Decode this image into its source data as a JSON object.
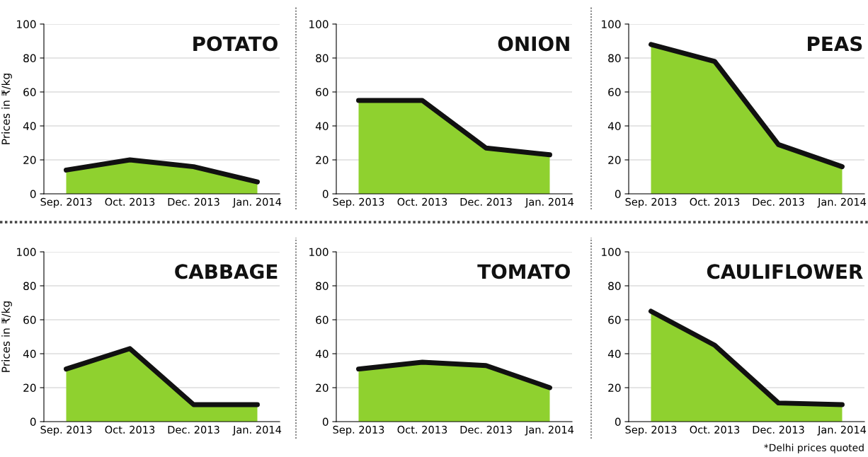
{
  "chart_data": [
    {
      "type": "area",
      "title": "POTATO",
      "ylabel": "Prices in ₹/kg",
      "categories": [
        "Sep. 2013",
        "Oct. 2013",
        "Dec. 2013",
        "Jan. 2014"
      ],
      "values": [
        14,
        20,
        16,
        7
      ],
      "color": "#8fd12f",
      "ylim": [
        0,
        100
      ],
      "yticks": [
        0,
        20,
        40,
        60,
        80,
        100
      ],
      "grid": "y"
    },
    {
      "type": "area",
      "title": "ONION",
      "categories": [
        "Sep. 2013",
        "Oct. 2013",
        "Dec. 2013",
        "Jan. 2014"
      ],
      "values": [
        55,
        55,
        27,
        23
      ],
      "color": "#8fd12f",
      "ylim": [
        0,
        100
      ],
      "yticks": [
        0,
        20,
        40,
        60,
        80,
        100
      ],
      "grid": "y"
    },
    {
      "type": "area",
      "title": "PEAS",
      "categories": [
        "Sep. 2013",
        "Oct. 2013",
        "Dec. 2013",
        "Jan. 2014"
      ],
      "values": [
        88,
        78,
        29,
        16
      ],
      "color": "#8fd12f",
      "ylim": [
        0,
        100
      ],
      "yticks": [
        0,
        20,
        40,
        60,
        80,
        100
      ],
      "grid": "y"
    },
    {
      "type": "area",
      "title": "CABBAGE",
      "ylabel": "Prices in ₹/kg",
      "categories": [
        "Sep. 2013",
        "Oct. 2013",
        "Dec. 2013",
        "Jan. 2014"
      ],
      "values": [
        31,
        43,
        10,
        10
      ],
      "color": "#8fd12f",
      "ylim": [
        0,
        100
      ],
      "yticks": [
        0,
        20,
        40,
        60,
        80,
        100
      ],
      "grid": "y"
    },
    {
      "type": "area",
      "title": "TOMATO",
      "categories": [
        "Sep. 2013",
        "Oct. 2013",
        "Dec. 2013",
        "Jan. 2014"
      ],
      "values": [
        31,
        35,
        33,
        20
      ],
      "color": "#8fd12f",
      "ylim": [
        0,
        100
      ],
      "yticks": [
        0,
        20,
        40,
        60,
        80,
        100
      ],
      "grid": "y"
    },
    {
      "type": "area",
      "title": "CAULIFLOWER",
      "categories": [
        "Sep. 2013",
        "Oct. 2013",
        "Dec. 2013",
        "Jan. 2014"
      ],
      "values": [
        65,
        45,
        11,
        10
      ],
      "color": "#8fd12f",
      "ylim": [
        0,
        100
      ],
      "yticks": [
        0,
        20,
        40,
        60,
        80,
        100
      ],
      "grid": "y",
      "annotations": [
        "*Delhi prices quoted"
      ]
    }
  ]
}
